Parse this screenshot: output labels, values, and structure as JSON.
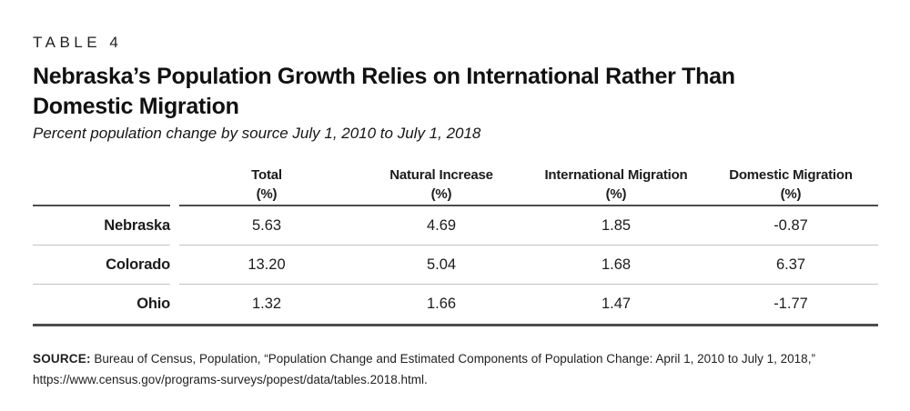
{
  "header": {
    "eyebrow": "TABLE 4",
    "title_line1": "Nebraska’s Population Growth Relies on International Rather Than",
    "title_line2": "Domestic Migration",
    "subtitle": "Percent population change by source July 1, 2010 to July 1, 2018"
  },
  "table": {
    "unit_label": "(%)",
    "columns": [
      "Total",
      "Natural Increase",
      "International Migration",
      "Domestic Migration"
    ],
    "rows": [
      {
        "label": "Nebraska",
        "values": [
          "5.63",
          "4.69",
          "1.85",
          "-0.87"
        ]
      },
      {
        "label": "Colorado",
        "values": [
          "13.20",
          "5.04",
          "1.68",
          "6.37"
        ]
      },
      {
        "label": "Ohio",
        "values": [
          "1.32",
          "1.66",
          "1.47",
          "-1.77"
        ]
      }
    ]
  },
  "source": {
    "label": "SOURCE:",
    "line1": "Bureau of Census, Population, “Population Change and Estimated Components of Population Change: April 1, 2010 to July 1, 2018,”",
    "line2": "https://www.census.gov/programs-surveys/popest/data/tables.2018.html."
  },
  "colors": {
    "text": "#1c1c1c",
    "rule_dark": "#4d4d4d",
    "rule_light": "#c3c3c3",
    "background": "#ffffff"
  },
  "chart_data": {
    "type": "table",
    "title": "Nebraska's Population Growth Relies on International Rather Than Domestic Migration",
    "subtitle": "Percent population change by source July 1, 2010 to July 1, 2018",
    "table_label": "TABLE 4",
    "columns": [
      "Total (%)",
      "Natural Increase (%)",
      "International Migration (%)",
      "Domestic Migration (%)"
    ],
    "rows": [
      {
        "label": "Nebraska",
        "values": [
          5.63,
          4.69,
          1.85,
          -0.87
        ]
      },
      {
        "label": "Colorado",
        "values": [
          13.2,
          5.04,
          1.68,
          6.37
        ]
      },
      {
        "label": "Ohio",
        "values": [
          1.32,
          1.66,
          1.47,
          -1.77
        ]
      }
    ],
    "source": "Bureau of Census, Population, “Population Change and Estimated Components of Population Change: April 1, 2010 to July 1, 2018,” https://www.census.gov/programs-surveys/popest/data/tables.2018.html."
  }
}
